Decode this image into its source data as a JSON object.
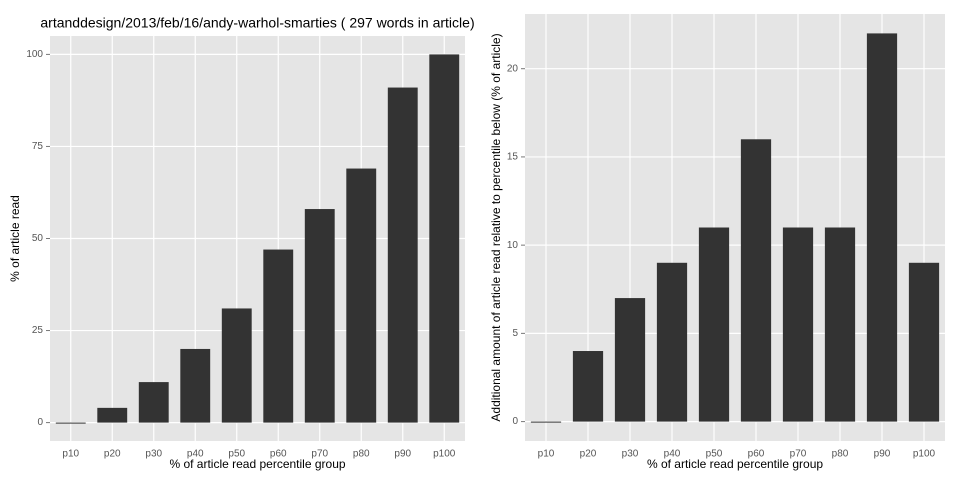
{
  "chart_data": [
    {
      "type": "bar",
      "title": "artanddesign/2013/feb/16/andy-warhol-smarties ( 297 words in article)",
      "x_label": "% of article read percentile group",
      "y_label": "% of article read",
      "categories": [
        "p10",
        "p20",
        "p30",
        "p40",
        "p50",
        "p60",
        "p70",
        "p80",
        "p90",
        "p100"
      ],
      "values": [
        0,
        4,
        11,
        20,
        31,
        47,
        58,
        69,
        91,
        100
      ],
      "color": "#333333",
      "ylim": [
        -5,
        105
      ],
      "yticks": [
        0,
        25,
        50,
        75,
        100
      ],
      "grid": true
    },
    {
      "type": "bar",
      "x_label": "% of article read percentile group",
      "y_label": "Additional amount of article read relative to percentile below (% of article)",
      "categories": [
        "p10",
        "p20",
        "p30",
        "p40",
        "p50",
        "p60",
        "p70",
        "p80",
        "p90",
        "p100"
      ],
      "values": [
        0,
        4,
        7,
        9,
        11,
        16,
        11,
        11,
        22,
        9
      ],
      "color": "#333333",
      "ylim": [
        -1.1,
        23.1
      ],
      "yticks": [
        0,
        5,
        10,
        15,
        20
      ],
      "grid": true
    }
  ]
}
